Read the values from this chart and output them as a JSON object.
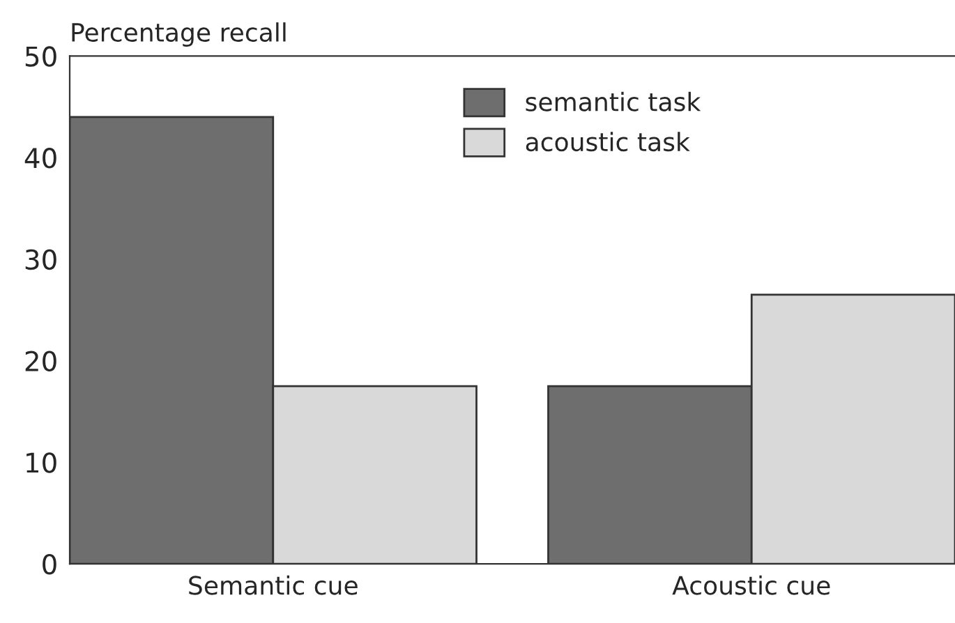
{
  "chart_data": {
    "type": "bar",
    "ylabel": "Percentage recall",
    "categories": [
      "Semantic cue",
      "Acoustic cue"
    ],
    "series": [
      {
        "name": "semantic task",
        "color": "#6e6e6e",
        "values": [
          44,
          17.5
        ]
      },
      {
        "name": "acoustic task",
        "color": "#d9d9d9",
        "values": [
          17.5,
          26.5
        ]
      }
    ],
    "ylim": [
      0,
      50
    ],
    "yticks": [
      0,
      10,
      20,
      30,
      40,
      50
    ],
    "grid": false,
    "legend": "top"
  }
}
